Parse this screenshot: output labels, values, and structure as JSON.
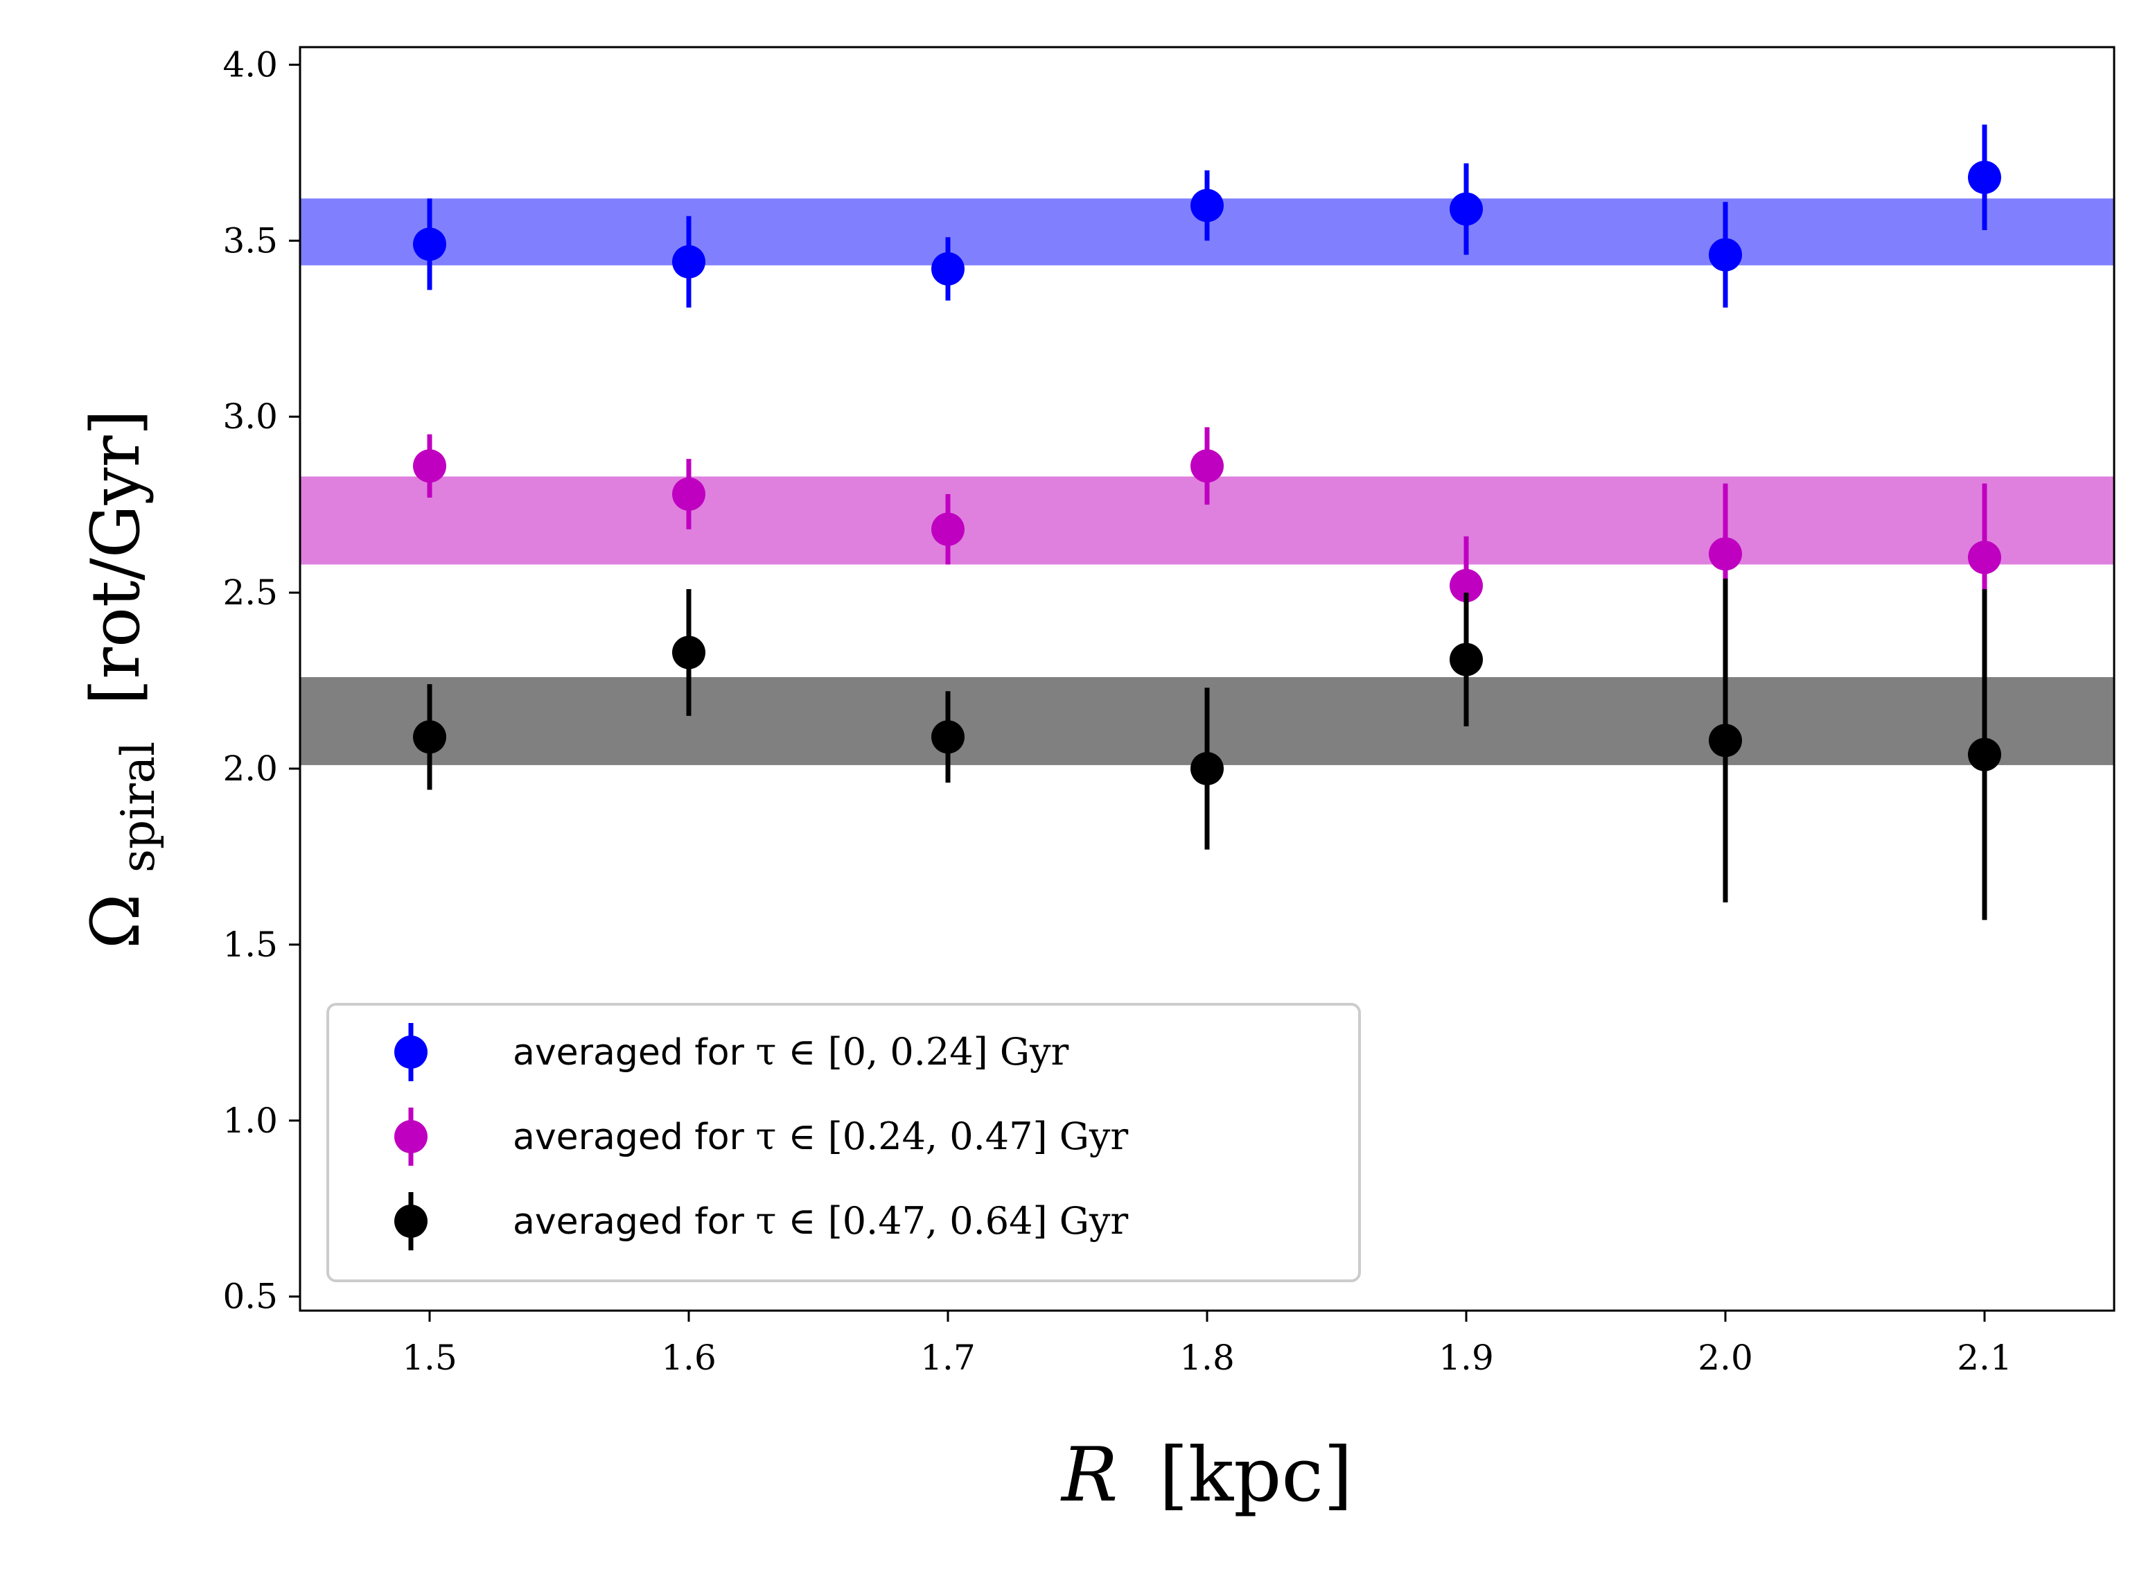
{
  "chart_data": {
    "type": "scatter",
    "title": "",
    "xlabel": {
      "symbol": "R",
      "unit": "[kpc]"
    },
    "ylabel": {
      "symbol": "Ω",
      "subscript": "spiral",
      "unit": "[rot/Gyr]"
    },
    "xlim": [
      1.45,
      2.15
    ],
    "ylim": [
      0.46,
      4.05
    ],
    "x_ticks": [
      1.5,
      1.6,
      1.7,
      1.8,
      1.9,
      2.0,
      2.1
    ],
    "x_tick_labels": [
      "1.5",
      "1.6",
      "1.7",
      "1.8",
      "1.9",
      "2.0",
      "2.1"
    ],
    "y_ticks": [
      0.5,
      1.0,
      1.5,
      2.0,
      2.5,
      3.0,
      3.5,
      4.0
    ],
    "y_tick_labels": [
      "0.5",
      "1.0",
      "1.5",
      "2.0",
      "2.5",
      "3.0",
      "3.5",
      "4.0"
    ],
    "grid": false,
    "legend_position": "lower-left",
    "series": [
      {
        "name": "blue",
        "legend_prefix": "averaged for",
        "legend_math": "τ ∈ [0, 0.24]  Gyr",
        "color": "#0000ff",
        "band_color": "#8080ff",
        "band": [
          3.43,
          3.62
        ],
        "x": [
          1.5,
          1.6,
          1.7,
          1.8,
          1.9,
          2.0,
          2.1
        ],
        "y": [
          3.49,
          3.44,
          3.42,
          3.6,
          3.59,
          3.46,
          3.68
        ],
        "err": [
          0.13,
          0.13,
          0.09,
          0.1,
          0.13,
          0.15,
          0.15
        ]
      },
      {
        "name": "magenta",
        "legend_prefix": "averaged for",
        "legend_math": "τ ∈ [0.24, 0.47]  Gyr",
        "color": "#c000c0",
        "band_color": "#df80df",
        "band": [
          2.58,
          2.83
        ],
        "x": [
          1.5,
          1.6,
          1.7,
          1.8,
          1.9,
          2.0,
          2.1
        ],
        "y": [
          2.86,
          2.78,
          2.68,
          2.86,
          2.52,
          2.61,
          2.6
        ],
        "err": [
          0.09,
          0.1,
          0.1,
          0.11,
          0.14,
          0.2,
          0.21
        ]
      },
      {
        "name": "black",
        "legend_prefix": "averaged for",
        "legend_math": "τ ∈ [0.47, 0.64]  Gyr",
        "color": "#000000",
        "band_color": "#808080",
        "band": [
          2.01,
          2.26
        ],
        "x": [
          1.5,
          1.6,
          1.7,
          1.8,
          1.9,
          2.0,
          2.1
        ],
        "y": [
          2.09,
          2.33,
          2.09,
          2.0,
          2.31,
          2.08,
          2.04
        ],
        "err": [
          0.15,
          0.18,
          0.13,
          0.23,
          0.19,
          0.46,
          0.47
        ]
      }
    ]
  }
}
